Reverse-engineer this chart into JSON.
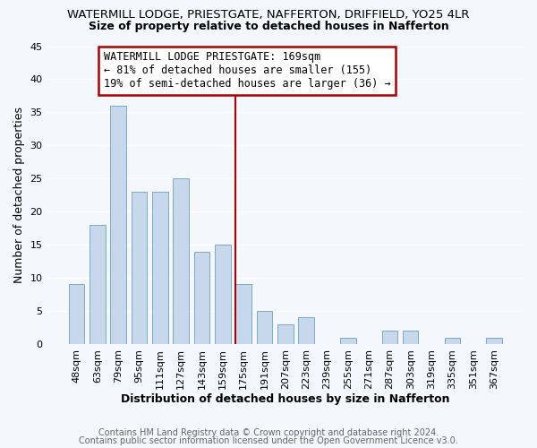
{
  "title": "WATERMILL LODGE, PRIESTGATE, NAFFERTON, DRIFFIELD, YO25 4LR",
  "subtitle": "Size of property relative to detached houses in Nafferton",
  "xlabel": "Distribution of detached houses by size in Nafferton",
  "ylabel": "Number of detached properties",
  "bar_color": "#c8d8ec",
  "bar_edge_color": "#7aaac8",
  "categories": [
    "48sqm",
    "63sqm",
    "79sqm",
    "95sqm",
    "111sqm",
    "127sqm",
    "143sqm",
    "159sqm",
    "175sqm",
    "191sqm",
    "207sqm",
    "223sqm",
    "239sqm",
    "255sqm",
    "271sqm",
    "287sqm",
    "303sqm",
    "319sqm",
    "335sqm",
    "351sqm",
    "367sqm"
  ],
  "values": [
    9,
    18,
    36,
    23,
    23,
    25,
    14,
    15,
    9,
    5,
    3,
    4,
    0,
    1,
    0,
    2,
    2,
    0,
    1,
    0,
    1
  ],
  "ylim": [
    0,
    45
  ],
  "yticks": [
    0,
    5,
    10,
    15,
    20,
    25,
    30,
    35,
    40,
    45
  ],
  "vline_color": "#aa0000",
  "annotation_title": "WATERMILL LODGE PRIESTGATE: 169sqm",
  "annotation_line1": "← 81% of detached houses are smaller (155)",
  "annotation_line2": "19% of semi-detached houses are larger (36) →",
  "annotation_box_color": "#ffffff",
  "annotation_box_edge": "#aa0000",
  "footer1": "Contains HM Land Registry data © Crown copyright and database right 2024.",
  "footer2": "Contains public sector information licensed under the Open Government Licence v3.0.",
  "background_color": "#f4f7fb",
  "grid_color": "#ffffff",
  "title_fontsize": 9.5,
  "subtitle_fontsize": 9.0,
  "axis_label_fontsize": 9.0,
  "tick_fontsize": 8.0,
  "annotation_fontsize": 8.5,
  "footer_fontsize": 7.0
}
